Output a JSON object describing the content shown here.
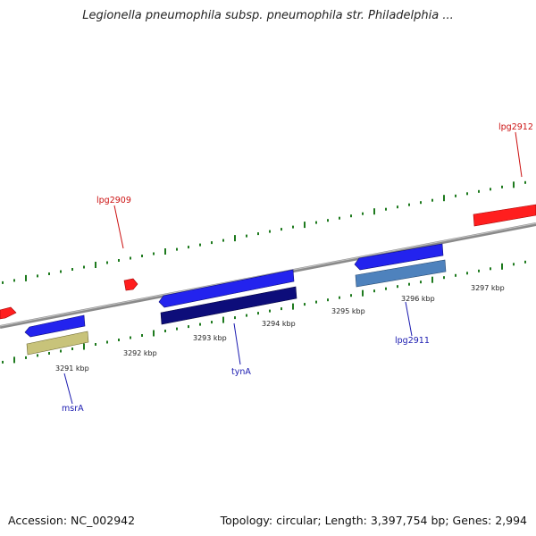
{
  "title": "Legionella pneumophila subsp. pneumophila str. Philadelphia ...",
  "footer": {
    "accession": "Accession: NC_002942",
    "summary": "Topology: circular; Length: 3,397,754 bp; Genes: 2,994"
  },
  "colors": {
    "forward_gene": "#ff1e1e",
    "reverse_gene": "#2323ee",
    "reverse_gene_dark": "#0d0d7a",
    "olive_feature": "#c8c37a",
    "steel_feature": "#4e82bd",
    "backbone": "#8a8a8a",
    "ticks": "#1e7a1e",
    "forward_label": "#cc1111",
    "reverse_label": "#1a1ab0"
  },
  "scale": {
    "unit": "kbp",
    "labels": [
      "3291 kbp",
      "3292 kbp",
      "3293 kbp",
      "3294 kbp",
      "3295 kbp",
      "3296 kbp",
      "3297 kbp"
    ]
  },
  "genes": {
    "forward": [
      {
        "label": "lpg2909"
      },
      {
        "label": "lpg2912"
      }
    ],
    "reverse": [
      {
        "label": "msrA"
      },
      {
        "label": "tynA"
      },
      {
        "label": "lpg2911"
      }
    ]
  }
}
